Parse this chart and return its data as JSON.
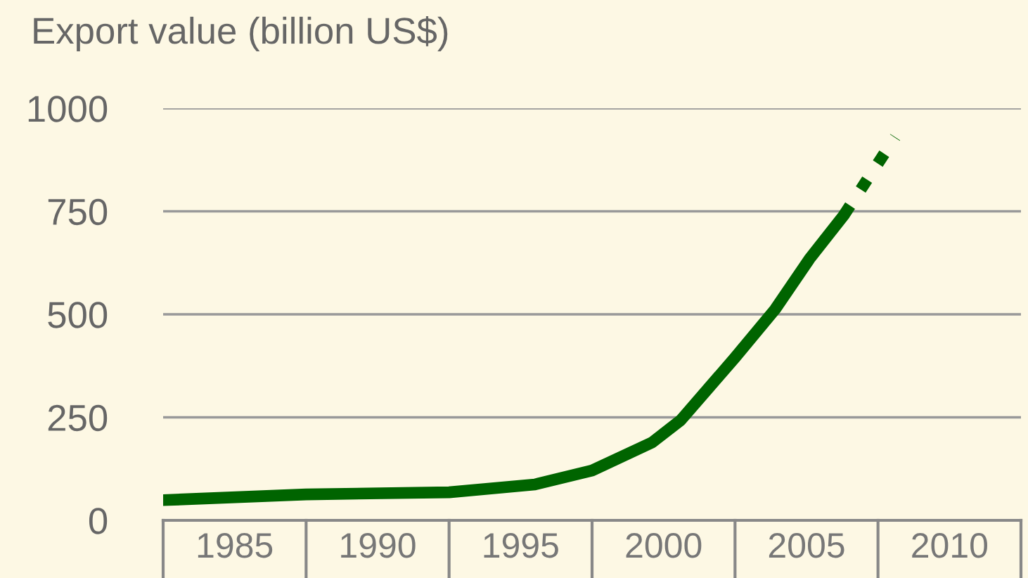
{
  "chart_data": {
    "type": "line",
    "ylabel": "Export value (billion US$)",
    "series": [
      {
        "color": "#006400",
        "line_style": "solid",
        "x": [
          1982.5,
          1987.5,
          1992.5,
          1995.5,
          1997.5,
          1999.6,
          2000.6,
          2002.5,
          2003.9,
          2005.1,
          2006.3
        ],
        "values": [
          49,
          63,
          68,
          87,
          121,
          189,
          243,
          395,
          512,
          634,
          740
        ]
      },
      {
        "color": "#006400",
        "line_style": "dotted",
        "x": [
          2006.3,
          2008.1
        ],
        "values": [
          740,
          930
        ]
      }
    ],
    "xlim": [
      1982.5,
      2012.5
    ],
    "xticks": [
      1985,
      1990,
      1995,
      2000,
      2005,
      2010
    ],
    "ylim": [
      0,
      1000
    ],
    "yticks": [
      0,
      250,
      500,
      750,
      1000
    ],
    "grid": "y",
    "legend": false,
    "marker": "none"
  }
}
